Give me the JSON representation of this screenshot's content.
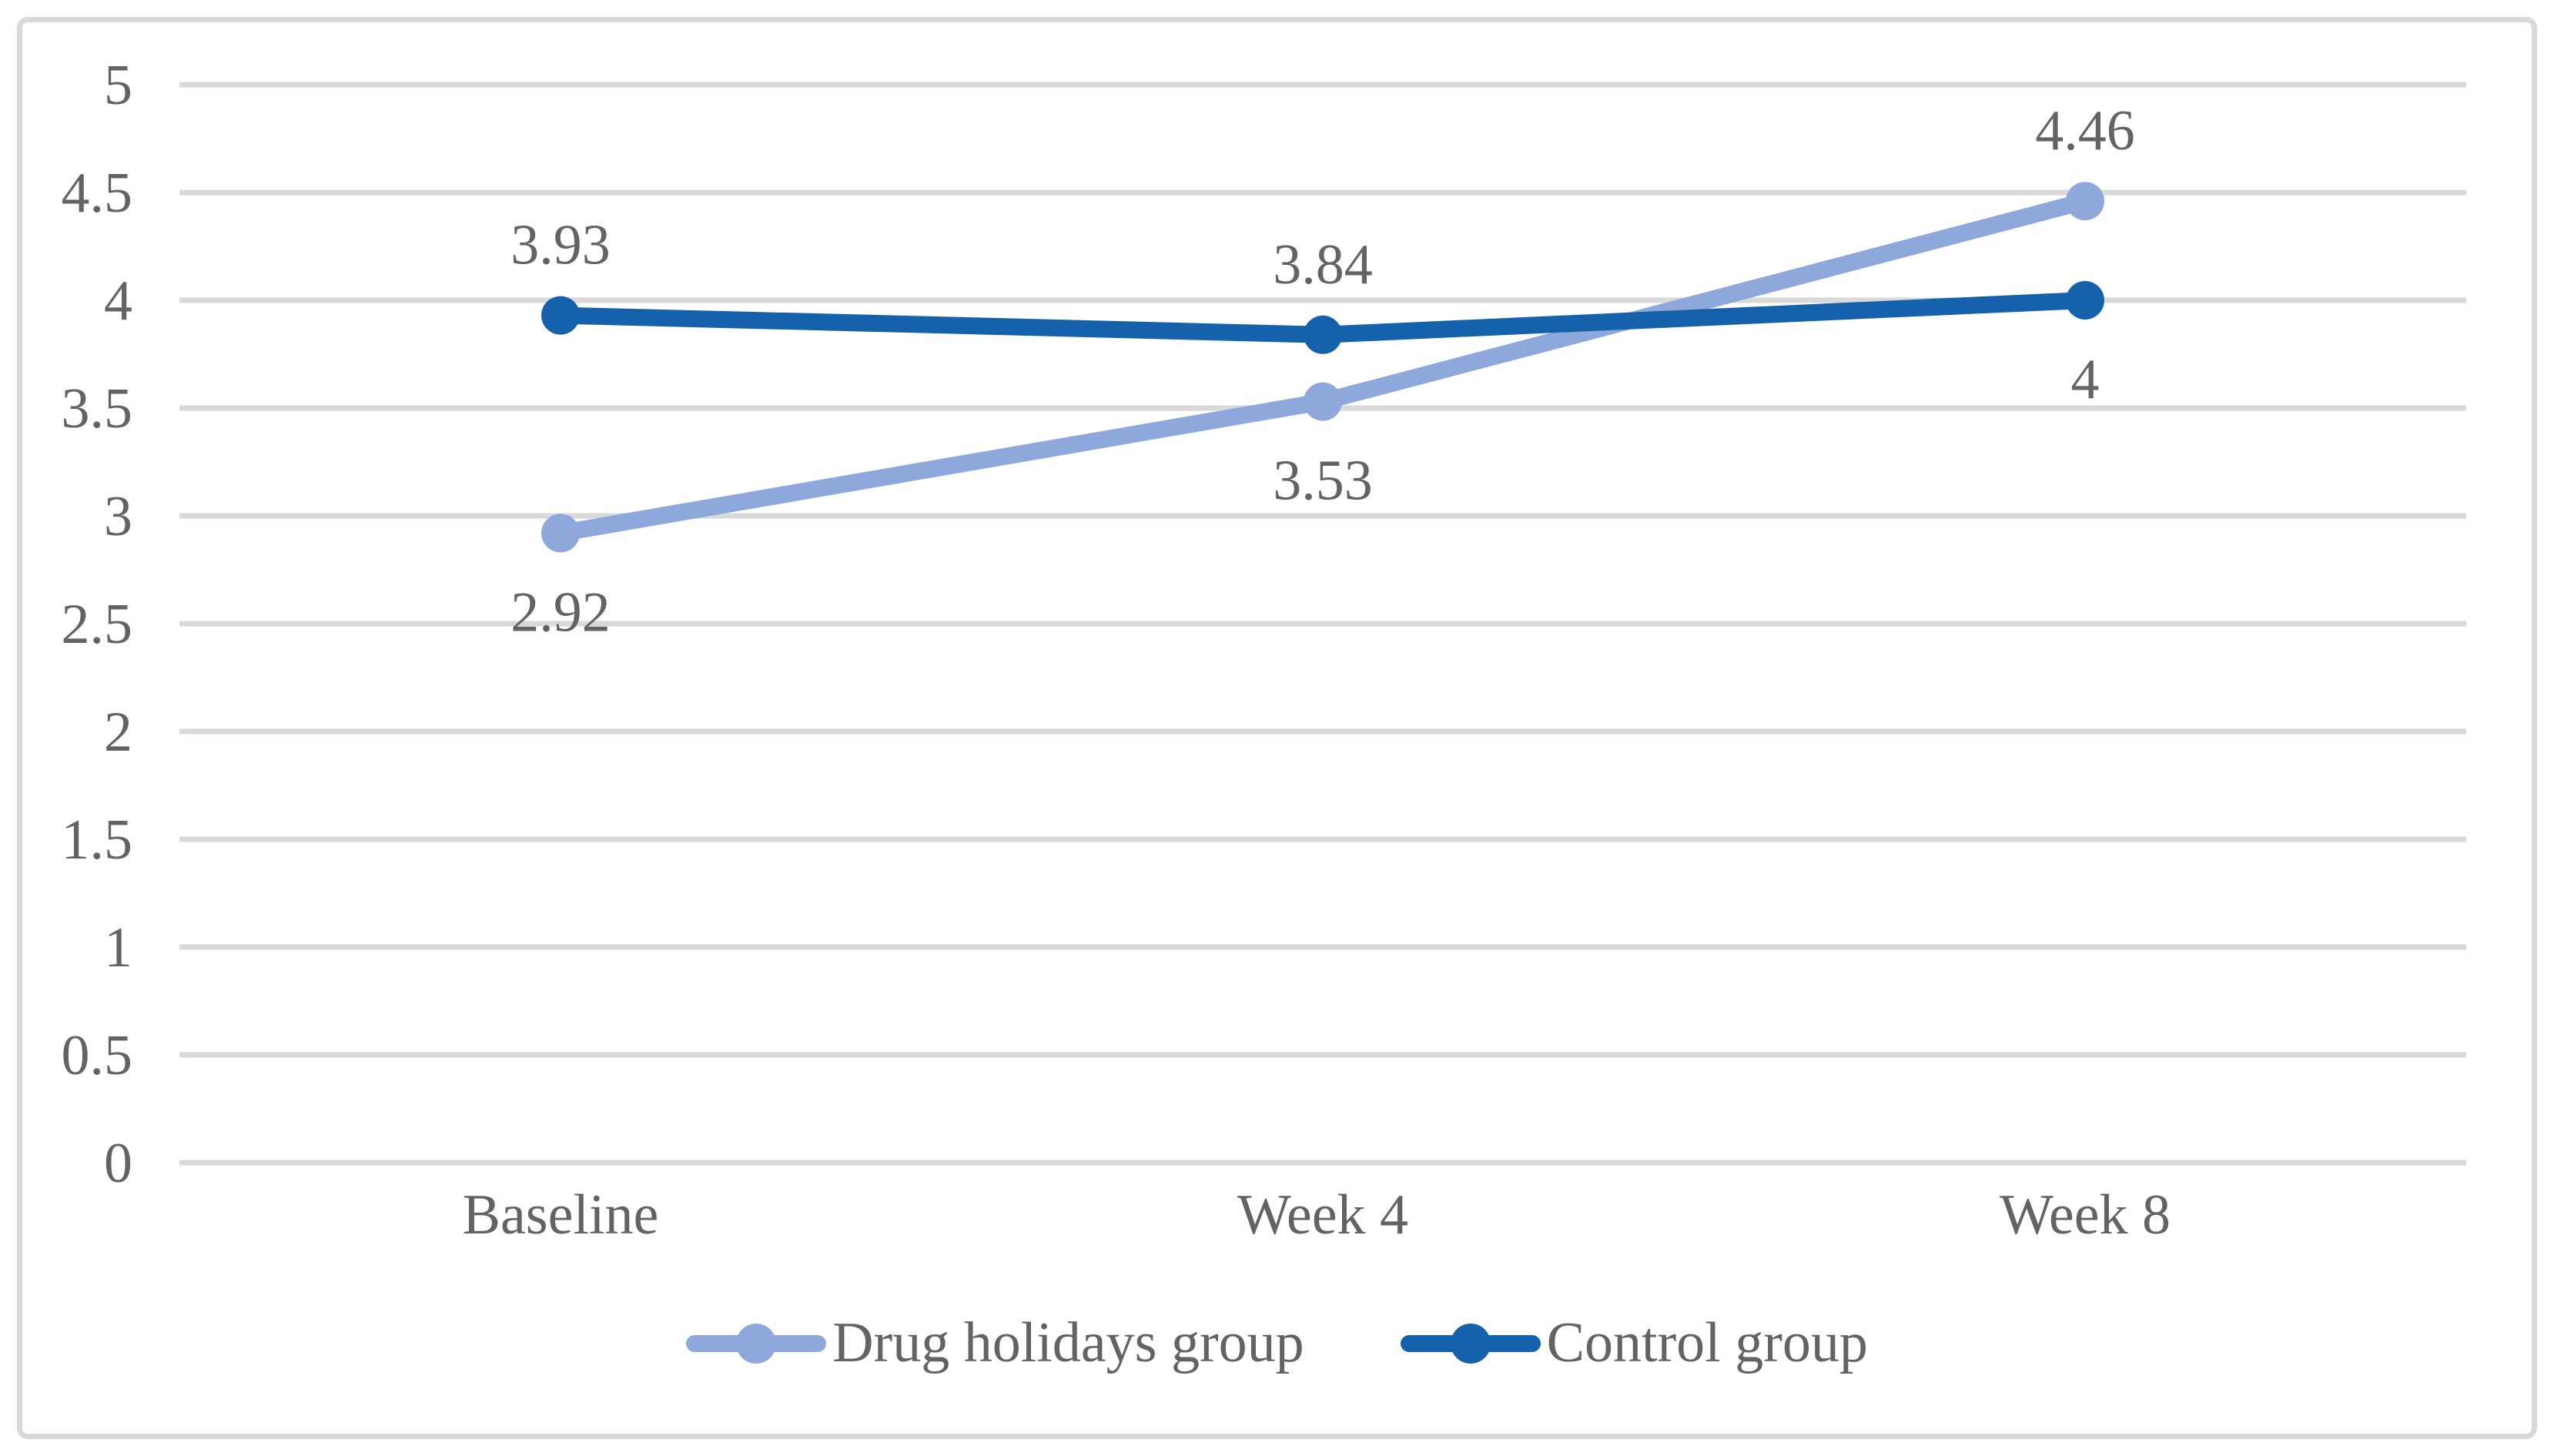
{
  "figure": {
    "background_color": "#FFFFFF",
    "frame_border_color": "#D9D9D9"
  },
  "chart_data": {
    "type": "line",
    "title": "",
    "xlabel": "",
    "ylabel": "",
    "categories": [
      "Baseline",
      "Week 4",
      "Week 8"
    ],
    "series": [
      {
        "name": "Drug holidays group",
        "color": "#8FA8DC",
        "values": [
          2.92,
          3.53,
          4.46
        ],
        "data_labels": [
          "2.92",
          "3.53",
          "4.46"
        ],
        "label_positions": [
          "below",
          "below",
          "above"
        ]
      },
      {
        "name": "Control group",
        "color": "#1661AB",
        "values": [
          3.93,
          3.84,
          4
        ],
        "data_labels": [
          "3.93",
          "3.84",
          "4"
        ],
        "label_positions": [
          "above",
          "above",
          "below"
        ]
      }
    ],
    "ylim": [
      0,
      5
    ],
    "ytick_step": 0.5,
    "ytick_labels": [
      "0",
      "0.5",
      "1",
      "1.5",
      "2",
      "2.5",
      "3",
      "3.5",
      "4",
      "4.5",
      "5"
    ],
    "grid": "horizontal",
    "gridline_color": "#D9D9D9",
    "text_color": "#636363",
    "legend_position": "bottom-center",
    "marker_style": "circle"
  }
}
